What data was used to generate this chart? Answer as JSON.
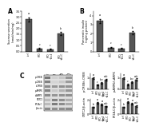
{
  "panel_A": {
    "label": "A",
    "ylabel": "Sucrose secretion\n(nmol/min/mg)",
    "bars": [
      2.8,
      0.25,
      0.2,
      1.55
    ],
    "errors": [
      0.18,
      0.04,
      0.04,
      0.14
    ],
    "bar_color": "#555555",
    "sig_labels": [
      "a",
      "c",
      "c",
      "b"
    ],
    "ylim": [
      0,
      3.5
    ]
  },
  "panel_B": {
    "label": "B",
    "ylabel": "Pancreatic insulin\n(ng/mg protein)",
    "bars": [
      3.4,
      0.45,
      0.35,
      2.1
    ],
    "errors": [
      0.22,
      0.05,
      0.05,
      0.17
    ],
    "bar_color": "#555555",
    "sig_labels": [
      "a",
      "c",
      "c",
      "b"
    ],
    "ylim": [
      0,
      4.5
    ]
  },
  "panel_C_label": "C",
  "wb_rows": [
    {
      "name": "p-CREB",
      "intensities": [
        0.7,
        0.25,
        0.3,
        0.55
      ]
    },
    {
      "name": "p-CREB",
      "intensities": [
        0.65,
        0.22,
        0.28,
        0.52
      ]
    },
    {
      "name": "t-CREB",
      "intensities": [
        0.6,
        0.55,
        0.58,
        0.57
      ]
    },
    {
      "name": "p-AMPK",
      "intensities": [
        0.65,
        0.28,
        0.4,
        0.55
      ]
    },
    {
      "name": "t-AMPK",
      "intensities": [
        0.6,
        0.55,
        0.57,
        0.58
      ]
    },
    {
      "name": "CRTC2",
      "intensities": [
        0.35,
        0.65,
        0.58,
        0.42
      ]
    },
    {
      "name": "PP2A-C",
      "intensities": [
        0.35,
        0.68,
        0.6,
        0.44
      ]
    },
    {
      "name": "β-actin",
      "intensities": [
        0.6,
        0.58,
        0.59,
        0.6
      ]
    }
  ],
  "panel_D1": {
    "ylabel": "p-CREB/t-CREB",
    "bars": [
      1.0,
      0.38,
      0.55,
      0.82
    ],
    "errors": [
      0.09,
      0.05,
      0.06,
      0.08
    ],
    "bar_color": "#555555",
    "sig_labels": [
      "a",
      "c",
      "b,c",
      "a,b"
    ],
    "ylim": [
      0,
      1.4
    ]
  },
  "panel_D2": {
    "ylabel": "p-AMPK/t-AMPK",
    "bars": [
      1.0,
      0.42,
      0.65,
      0.88
    ],
    "errors": [
      0.09,
      0.05,
      0.07,
      0.08
    ],
    "bar_color": "#555555",
    "sig_labels": [
      "a",
      "c",
      "b,c",
      "a,b"
    ],
    "ylim": [
      0,
      1.4
    ]
  },
  "panel_D3": {
    "ylabel": "CRTC2/β-actin",
    "bars": [
      1.0,
      1.65,
      1.42,
      1.12
    ],
    "errors": [
      0.09,
      0.13,
      0.11,
      0.09
    ],
    "bar_color": "#555555",
    "sig_labels": [
      "b",
      "a",
      "a",
      "a,b"
    ],
    "ylim": [
      0,
      2.2
    ]
  },
  "panel_D4": {
    "ylabel": "PP2A-C/β-actin",
    "bars": [
      1.0,
      1.72,
      1.52,
      1.18
    ],
    "errors": [
      0.1,
      0.13,
      0.12,
      0.1
    ],
    "bar_color": "#555555",
    "sig_labels": [
      "b",
      "a",
      "a",
      "a,b"
    ],
    "ylim": [
      0,
      2.2
    ]
  },
  "background_color": "#ffffff",
  "xtick_labels": [
    "ctrl",
    "HFD",
    "HFD\n+Ex.4",
    "HFD\n+A.L.C"
  ],
  "lane_labels": [
    "ctrl",
    "HFD",
    "HFD\n+Ex.4",
    "HFD\n+A.L.C"
  ]
}
